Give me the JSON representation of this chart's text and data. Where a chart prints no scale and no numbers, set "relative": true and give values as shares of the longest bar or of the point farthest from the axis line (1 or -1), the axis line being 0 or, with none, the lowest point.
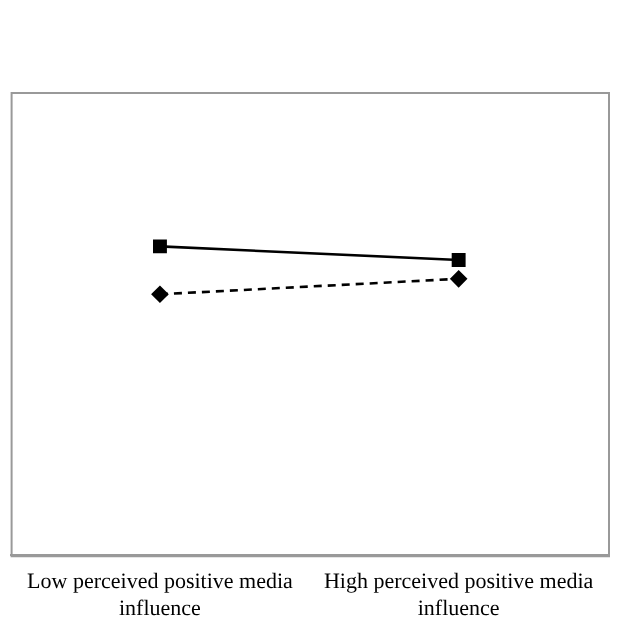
{
  "chart_data": {
    "type": "line",
    "relative": true,
    "categories": [
      "Low perceived positive media influence",
      "High perceived positive media influence"
    ],
    "series": [
      {
        "color": "#000000",
        "values": [
          1,
          0.956
        ],
        "marker": "square",
        "line_style": "solid"
      },
      {
        "color": "#000000",
        "values": [
          0.845,
          0.895
        ],
        "marker": "diamond",
        "line_style": "dashed"
      }
    ],
    "grid": false,
    "legend": false
  }
}
